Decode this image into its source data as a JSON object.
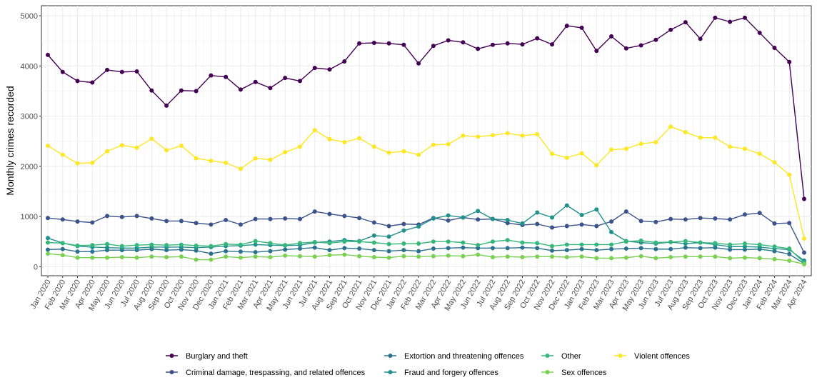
{
  "chart_data": {
    "type": "line",
    "ylabel": "Monthly crimes recorded",
    "xlabel": "",
    "ylim": [
      -180,
      5200
    ],
    "y_ticks": [
      0,
      1000,
      2000,
      3000,
      4000,
      5000
    ],
    "grid": true,
    "legend_position": "bottom",
    "categories": [
      "Jan 2020",
      "Feb 2020",
      "Mar 2020",
      "Apr 2020",
      "May 2020",
      "Jun 2020",
      "Jul 2020",
      "Aug 2020",
      "Sep 2020",
      "Oct 2020",
      "Nov 2020",
      "Dec 2020",
      "Jan 2021",
      "Feb 2021",
      "Mar 2021",
      "Apr 2021",
      "May 2021",
      "Jun 2021",
      "Jul 2021",
      "Aug 2021",
      "Sep 2021",
      "Oct 2021",
      "Nov 2021",
      "Dec 2021",
      "Jan 2022",
      "Feb 2022",
      "Mar 2022",
      "Apr 2022",
      "May 2022",
      "Jun 2022",
      "Jul 2022",
      "Aug 2022",
      "Sep 2022",
      "Oct 2022",
      "Nov 2022",
      "Dec 2022",
      "Jan 2023",
      "Feb 2023",
      "Mar 2023",
      "Apr 2023",
      "May 2023",
      "Jun 2023",
      "Jul 2023",
      "Aug 2023",
      "Sep 2023",
      "Oct 2023",
      "Nov 2023",
      "Dec 2023",
      "Jan 2024",
      "Feb 2024",
      "Mar 2024",
      "Apr 2024"
    ],
    "series": [
      {
        "name": "Burglary and theft",
        "color": "#440154",
        "values": [
          4220,
          3880,
          3700,
          3670,
          3920,
          3880,
          3890,
          3510,
          3210,
          3510,
          3500,
          3810,
          3780,
          3530,
          3680,
          3560,
          3760,
          3700,
          3960,
          3930,
          4090,
          4450,
          4460,
          4450,
          4420,
          4050,
          4400,
          4510,
          4470,
          4340,
          4420,
          4450,
          4430,
          4550,
          4430,
          4800,
          4760,
          4300,
          4590,
          4350,
          4410,
          4520,
          4720,
          4870,
          4540,
          4960,
          4880,
          4960,
          4660,
          4360,
          4080,
          1350
        ]
      },
      {
        "name": "Criminal damage, trespassing, and related offences",
        "color": "#3b528b",
        "values": [
          970,
          940,
          900,
          880,
          1010,
          990,
          1010,
          960,
          910,
          910,
          870,
          840,
          930,
          840,
          950,
          950,
          960,
          950,
          1100,
          1050,
          1010,
          970,
          880,
          810,
          850,
          840,
          970,
          920,
          980,
          940,
          950,
          870,
          830,
          850,
          780,
          810,
          840,
          810,
          900,
          1100,
          910,
          890,
          950,
          940,
          970,
          960,
          940,
          1040,
          1070,
          860,
          870,
          280
        ]
      },
      {
        "name": "Extortion and threatening offences",
        "color": "#2c728e",
        "values": [
          340,
          350,
          300,
          300,
          330,
          330,
          330,
          350,
          330,
          340,
          320,
          260,
          310,
          300,
          290,
          310,
          340,
          360,
          380,
          330,
          370,
          360,
          330,
          310,
          330,
          310,
          360,
          370,
          380,
          370,
          370,
          370,
          380,
          370,
          320,
          330,
          350,
          330,
          350,
          360,
          370,
          350,
          350,
          380,
          370,
          380,
          340,
          340,
          350,
          310,
          250,
          60
        ]
      },
      {
        "name": "Fraud and forgery offences",
        "color": "#21918c",
        "values": [
          570,
          470,
          410,
          390,
          380,
          370,
          370,
          390,
          390,
          390,
          380,
          390,
          410,
          420,
          440,
          430,
          420,
          430,
          480,
          500,
          530,
          510,
          620,
          600,
          720,
          800,
          960,
          1020,
          980,
          1110,
          950,
          930,
          860,
          1080,
          980,
          1220,
          1030,
          1140,
          690,
          510,
          480,
          460,
          490,
          460,
          480,
          440,
          400,
          400,
          390,
          360,
          340,
          120
        ]
      },
      {
        "name": "Other",
        "color": "#35b779",
        "values": [
          480,
          470,
          420,
          430,
          450,
          410,
          430,
          440,
          430,
          440,
          420,
          410,
          450,
          440,
          510,
          470,
          430,
          470,
          490,
          470,
          500,
          500,
          480,
          450,
          460,
          460,
          500,
          500,
          480,
          430,
          500,
          530,
          480,
          470,
          410,
          440,
          440,
          440,
          440,
          500,
          520,
          480,
          490,
          510,
          480,
          470,
          440,
          460,
          440,
          400,
          360,
          80
        ]
      },
      {
        "name": "Sex offences",
        "color": "#7ad151",
        "values": [
          260,
          230,
          180,
          180,
          180,
          190,
          180,
          200,
          190,
          200,
          140,
          140,
          200,
          180,
          200,
          190,
          220,
          210,
          200,
          230,
          240,
          210,
          190,
          180,
          210,
          200,
          210,
          220,
          210,
          240,
          190,
          200,
          190,
          200,
          200,
          190,
          200,
          170,
          170,
          180,
          210,
          170,
          190,
          200,
          200,
          200,
          170,
          180,
          170,
          150,
          120,
          50
        ]
      },
      {
        "name": "Violent offences",
        "color": "#fde725",
        "values": [
          2410,
          2230,
          2060,
          2070,
          2300,
          2420,
          2370,
          2550,
          2320,
          2410,
          2160,
          2110,
          2070,
          1950,
          2160,
          2130,
          2280,
          2390,
          2720,
          2540,
          2480,
          2560,
          2390,
          2270,
          2300,
          2230,
          2430,
          2440,
          2610,
          2590,
          2620,
          2660,
          2610,
          2640,
          2250,
          2170,
          2260,
          2020,
          2330,
          2350,
          2450,
          2480,
          2790,
          2680,
          2570,
          2570,
          2390,
          2350,
          2250,
          2080,
          1830,
          560
        ]
      }
    ]
  }
}
